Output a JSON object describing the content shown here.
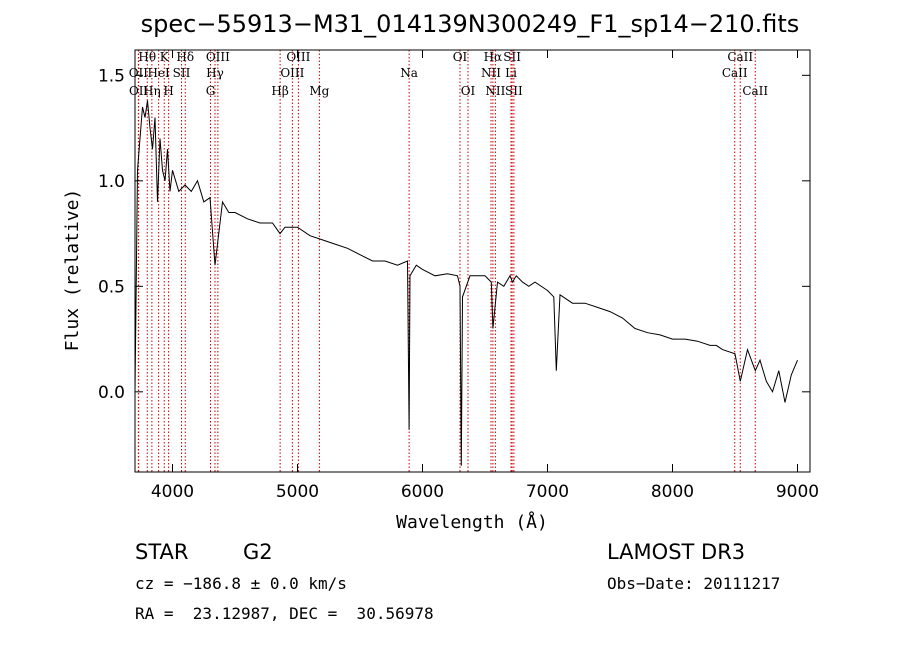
{
  "chart_data": {
    "type": "line",
    "title": "spec−55913−M31_014139N300249_F1_sp14−210.fits",
    "xlabel": "Wavelength (Å)",
    "ylabel": "Flux (relative)",
    "xlim": [
      3700,
      9100
    ],
    "ylim": [
      -0.38,
      1.62
    ],
    "xticks": [
      4000,
      5000,
      6000,
      7000,
      8000,
      9000
    ],
    "yticks": [
      0.0,
      0.5,
      1.0,
      1.5
    ],
    "ytick_labels": [
      "0.0",
      "0.5",
      "1.0",
      "1.5"
    ],
    "series": [
      {
        "name": "flux",
        "x": [
          3700,
          3720,
          3740,
          3760,
          3780,
          3800,
          3820,
          3840,
          3860,
          3880,
          3900,
          3920,
          3940,
          3960,
          3980,
          4000,
          4050,
          4100,
          4150,
          4200,
          4250,
          4300,
          4340,
          4400,
          4450,
          4500,
          4600,
          4700,
          4800,
          4860,
          4900,
          5000,
          5100,
          5200,
          5300,
          5400,
          5500,
          5600,
          5700,
          5800,
          5880,
          5893,
          5900,
          5950,
          6000,
          6100,
          6200,
          6280,
          6300,
          6310,
          6320,
          6380,
          6400,
          6500,
          6550,
          6563,
          6600,
          6650,
          6700,
          6720,
          6750,
          6800,
          6850,
          6900,
          7000,
          7050,
          7070,
          7100,
          7200,
          7300,
          7400,
          7500,
          7600,
          7700,
          7800,
          7900,
          8000,
          8100,
          8200,
          8300,
          8350,
          8400,
          8500,
          8542,
          8600,
          8662,
          8700,
          8750,
          8800,
          8850,
          8900,
          8950,
          9000
        ],
        "y": [
          0.0,
          1.05,
          1.2,
          1.35,
          1.3,
          1.38,
          1.25,
          1.15,
          1.3,
          0.9,
          1.2,
          1.05,
          1.0,
          1.15,
          0.95,
          1.05,
          0.95,
          0.98,
          0.95,
          1.0,
          0.9,
          0.92,
          0.6,
          0.9,
          0.85,
          0.85,
          0.82,
          0.8,
          0.8,
          0.75,
          0.78,
          0.78,
          0.74,
          0.72,
          0.7,
          0.68,
          0.65,
          0.62,
          0.62,
          0.6,
          0.62,
          -0.18,
          0.55,
          0.6,
          0.58,
          0.55,
          0.56,
          0.55,
          0.5,
          -0.35,
          0.45,
          0.55,
          0.55,
          0.55,
          0.52,
          0.3,
          0.52,
          0.5,
          0.55,
          0.52,
          0.55,
          0.52,
          0.5,
          0.52,
          0.48,
          0.45,
          0.1,
          0.46,
          0.42,
          0.42,
          0.4,
          0.38,
          0.35,
          0.3,
          0.28,
          0.27,
          0.25,
          0.25,
          0.24,
          0.22,
          0.22,
          0.2,
          0.18,
          0.05,
          0.2,
          0.1,
          0.15,
          0.05,
          0.0,
          0.1,
          -0.05,
          0.08,
          0.15
        ]
      }
    ],
    "lines": [
      {
        "label": "Hθ",
        "x": 3798,
        "row": 0
      },
      {
        "label": "K",
        "x": 3934,
        "row": 0
      },
      {
        "label": "Hδ",
        "x": 4102,
        "row": 0
      },
      {
        "label": "OIII",
        "x": 4363,
        "row": 0
      },
      {
        "label": "OIII",
        "x": 5007,
        "row": 0
      },
      {
        "label": "OI",
        "x": 6300,
        "row": 0
      },
      {
        "label": "Hα",
        "x": 6563,
        "row": 0
      },
      {
        "label": "SII",
        "x": 6717,
        "row": 0
      },
      {
        "label": "CaII",
        "x": 8542,
        "row": 0
      },
      {
        "label": "OII",
        "x": 3727,
        "row": 1
      },
      {
        "label": "HeI",
        "x": 3889,
        "row": 1
      },
      {
        "label": "SII",
        "x": 4072,
        "row": 1
      },
      {
        "label": "Hγ",
        "x": 4340,
        "row": 1
      },
      {
        "label": "OIII",
        "x": 4959,
        "row": 1
      },
      {
        "label": "Na",
        "x": 5893,
        "row": 1
      },
      {
        "label": "NII",
        "x": 6548,
        "row": 1
      },
      {
        "label": "Li",
        "x": 6708,
        "row": 1
      },
      {
        "label": "CaII",
        "x": 8498,
        "row": 1
      },
      {
        "label": "OII",
        "x": 3729,
        "row": 2
      },
      {
        "label": "Hη",
        "x": 3835,
        "row": 2
      },
      {
        "label": "H",
        "x": 3969,
        "row": 2
      },
      {
        "label": "G",
        "x": 4304,
        "row": 2
      },
      {
        "label": "Hβ",
        "x": 4861,
        "row": 2
      },
      {
        "label": "Mg",
        "x": 5175,
        "row": 2
      },
      {
        "label": "OI",
        "x": 6364,
        "row": 2
      },
      {
        "label": "NII",
        "x": 6583,
        "row": 2
      },
      {
        "label": "SII",
        "x": 6731,
        "row": 2
      },
      {
        "label": "CaII",
        "x": 8662,
        "row": 2
      }
    ]
  },
  "info": {
    "class": "STAR",
    "subclass": "G2",
    "survey": "LAMOST DR3",
    "cz": "cz = −186.8 ± 0.0 km/s",
    "obs_date": "Obs−Date: 20111217",
    "radec": "RA =  23.12987, DEC =  30.56978"
  },
  "colors": {
    "line_marker": "#cc0000",
    "spectrum": "#000000"
  }
}
